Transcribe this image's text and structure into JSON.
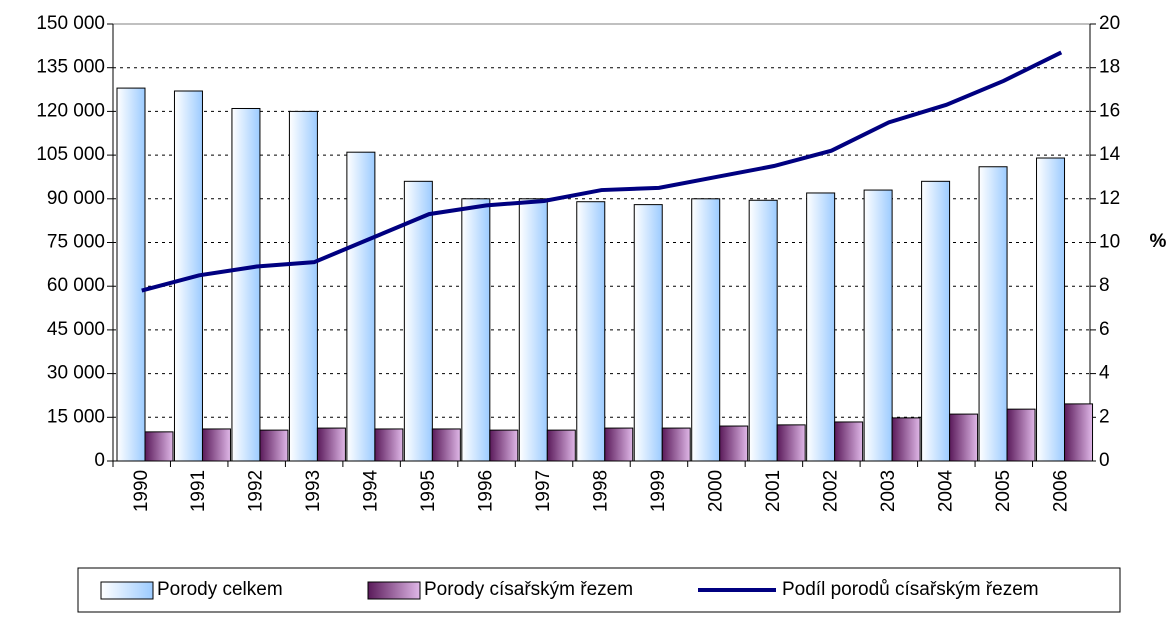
{
  "chart_data": {
    "type": "bar-line",
    "categories": [
      "1990",
      "1991",
      "1992",
      "1993",
      "1994",
      "1995",
      "1996",
      "1997",
      "1998",
      "1999",
      "2000",
      "2001",
      "2002",
      "2003",
      "2004",
      "2005",
      "2006"
    ],
    "series": [
      {
        "name": "Porody celkem",
        "color": "#b8dcff",
        "type": "bar",
        "values": [
          128000,
          127000,
          121000,
          120000,
          106000,
          96000,
          90000,
          90000,
          89000,
          88000,
          90000,
          89500,
          92000,
          93000,
          96000,
          101000,
          104000
        ]
      },
      {
        "name": "Porody císařským řezem",
        "color": "#8a3d8a",
        "type": "bar",
        "values": [
          10000,
          11000,
          10600,
          11300,
          11000,
          11000,
          10600,
          10600,
          11300,
          11300,
          12000,
          12400,
          13400,
          14800,
          16100,
          17800,
          19600
        ]
      },
      {
        "name": "Podíl porodů císařským řezem",
        "color": "#000080",
        "type": "line",
        "axis": "y2",
        "values": [
          7.8,
          8.5,
          8.9,
          9.1,
          10.2,
          11.3,
          11.7,
          11.9,
          12.4,
          12.5,
          13.0,
          13.5,
          14.2,
          15.5,
          16.3,
          17.4,
          18.7
        ]
      }
    ],
    "ylim": [
      0,
      150000
    ],
    "yticks": [
      0,
      {
        "value": 15000,
        "label": "15 000"
      },
      {
        "value": 30000,
        "label": "30 000"
      },
      {
        "value": 45000,
        "label": "45 000"
      },
      {
        "value": 60000,
        "label": "60 000"
      },
      {
        "value": 75000,
        "label": "75 000"
      },
      {
        "value": 90000,
        "label": "90 000"
      },
      {
        "value": 105000,
        "label": "105 000"
      },
      {
        "value": 120000,
        "label": "120 000"
      },
      {
        "value": 135000,
        "label": "135 000"
      },
      {
        "value": 150000,
        "label": "150 000"
      }
    ],
    "y2lim": [
      0,
      20
    ],
    "y2ticks": [
      0,
      2,
      4,
      6,
      8,
      10,
      12,
      14,
      16,
      18,
      20
    ],
    "y2label": "%",
    "grid": true,
    "legend": "bottom"
  }
}
